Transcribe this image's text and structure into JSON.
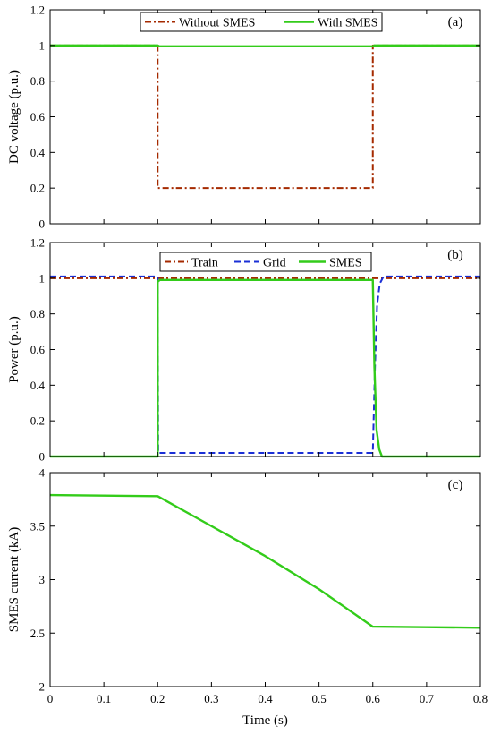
{
  "colors": {
    "without_smes": "#a52a00",
    "with_smes": "#33cc1a",
    "train": "#a52a00",
    "grid": "#1a2fd6",
    "smes": "#33cc1a",
    "axis": "#000000"
  },
  "chart_data": [
    {
      "type": "line",
      "panel_label": "(a)",
      "xlabel": "",
      "ylabel": "DC voltage (p.u.)",
      "xlim": [
        0,
        0.8
      ],
      "ylim": [
        0,
        1.2
      ],
      "xticks": [
        "0",
        "0.1",
        "0.2",
        "0.3",
        "0.4",
        "0.5",
        "0.6",
        "0.7",
        "0.8"
      ],
      "yticks": [
        "0",
        "0.2",
        "0.4",
        "0.6",
        "0.8",
        "1",
        "1.2"
      ],
      "legend_position": "top-center",
      "series": [
        {
          "name": "Without SMES",
          "style": "dashdot",
          "color_key": "without_smes",
          "x": [
            0,
            0.2,
            0.2,
            0.6,
            0.6,
            0.8
          ],
          "y": [
            1,
            1,
            0.2,
            0.2,
            1,
            1
          ]
        },
        {
          "name": "With SMES",
          "style": "solid",
          "color_key": "with_smes",
          "x": [
            0,
            0.2,
            0.203,
            0.6,
            0.603,
            0.8
          ],
          "y": [
            1,
            1,
            0.995,
            0.995,
            1,
            1
          ]
        }
      ]
    },
    {
      "type": "line",
      "panel_label": "(b)",
      "xlabel": "",
      "ylabel": "Power (p.u.)",
      "xlim": [
        0,
        0.8
      ],
      "ylim": [
        0,
        1.2
      ],
      "xticks": [
        "0",
        "0.1",
        "0.2",
        "0.3",
        "0.4",
        "0.5",
        "0.6",
        "0.7",
        "0.8"
      ],
      "yticks": [
        "0",
        "0.2",
        "0.4",
        "0.6",
        "0.8",
        "1",
        "1.2"
      ],
      "legend_position": "top-center",
      "series": [
        {
          "name": "Train",
          "style": "dashdot",
          "color_key": "train",
          "x": [
            0,
            0.8
          ],
          "y": [
            1,
            1
          ]
        },
        {
          "name": "Grid",
          "style": "dashed",
          "color_key": "grid",
          "x": [
            0,
            0.2,
            0.201,
            0.6,
            0.604,
            0.608,
            0.613,
            0.62,
            0.8
          ],
          "y": [
            1.01,
            1.01,
            0.02,
            0.02,
            0.5,
            0.85,
            0.97,
            1.01,
            1.01
          ]
        },
        {
          "name": "SMES",
          "style": "solid",
          "color_key": "smes",
          "x": [
            0,
            0.2,
            0.2,
            0.204,
            0.6,
            0.603,
            0.607,
            0.612,
            0.617,
            0.8
          ],
          "y": [
            0,
            0,
            0.98,
            0.99,
            0.99,
            0.5,
            0.15,
            0.04,
            0,
            0
          ]
        }
      ]
    },
    {
      "type": "line",
      "panel_label": "(c)",
      "xlabel": "Time (s)",
      "ylabel": "SMES current (kA)",
      "xlim": [
        0,
        0.8
      ],
      "ylim": [
        2,
        4
      ],
      "xticks": [
        "0",
        "0.1",
        "0.2",
        "0.3",
        "0.4",
        "0.5",
        "0.6",
        "0.7",
        "0.8"
      ],
      "yticks": [
        "2",
        "2.5",
        "3",
        "3.5",
        "4"
      ],
      "series": [
        {
          "name": "",
          "style": "solid",
          "color_key": "smes",
          "x": [
            0,
            0.2,
            0.3,
            0.4,
            0.5,
            0.6,
            0.7,
            0.8
          ],
          "y": [
            3.79,
            3.78,
            3.5,
            3.22,
            2.91,
            2.56,
            2.555,
            2.55
          ]
        }
      ]
    }
  ]
}
